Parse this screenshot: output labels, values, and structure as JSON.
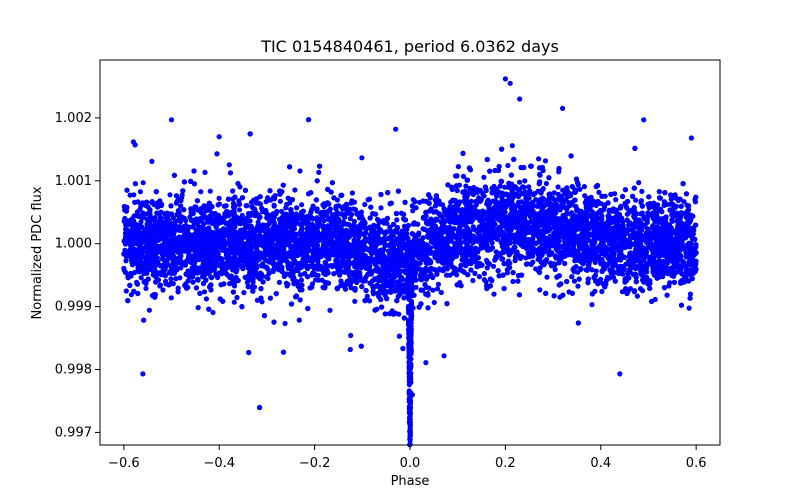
{
  "chart_data": {
    "type": "scatter",
    "title": "TIC 0154840461, period 6.0362 days",
    "xlabel": "Phase",
    "ylabel": "Normalized PDC flux",
    "xlim": [
      -0.65,
      0.65
    ],
    "ylim": [
      0.9968,
      1.00292
    ],
    "xticks": [
      -0.6,
      -0.4,
      -0.2,
      0.0,
      0.2,
      0.4,
      0.6
    ],
    "xtick_labels": [
      "−0.6",
      "−0.4",
      "−0.2",
      "0.0",
      "0.2",
      "0.4",
      "0.6"
    ],
    "yticks": [
      0.997,
      0.998,
      0.999,
      1.0,
      1.001,
      1.002
    ],
    "ytick_labels": [
      "0.997",
      "0.998",
      "0.999",
      "1.000",
      "1.001",
      "1.002"
    ],
    "grid": false,
    "marker_color": "#0000ff",
    "phase_range": [
      -0.6,
      0.6
    ],
    "baseline_flux": 1.0,
    "scatter_sigma_flux": 0.00035,
    "transit": {
      "phase": 0.0,
      "depth": 0.003,
      "width": 0.004
    },
    "brightening_bump": {
      "center_phase": 0.22,
      "amplitude": 0.00035,
      "width": 0.1
    },
    "dip_near_zero": {
      "center_phase": -0.03,
      "amplitude": 0.0003,
      "width": 0.05
    },
    "outliers": [
      [
        -0.5,
        1.00197
      ],
      [
        -0.58,
        1.00162
      ],
      [
        -0.4,
        1.0017
      ],
      [
        -0.03,
        1.00182
      ],
      [
        0.2,
        1.00262
      ],
      [
        0.21,
        1.00255
      ],
      [
        0.23,
        1.0023
      ],
      [
        0.32,
        1.00215
      ],
      [
        0.49,
        1.00197
      ],
      [
        0.59,
        1.00168
      ],
      [
        -0.56,
        0.99793
      ],
      [
        0.44,
        0.99793
      ],
      [
        0.0,
        0.997
      ],
      [
        0.0,
        0.99715
      ],
      [
        0.0,
        0.99735
      ],
      [
        0.005,
        0.9976
      ]
    ]
  }
}
